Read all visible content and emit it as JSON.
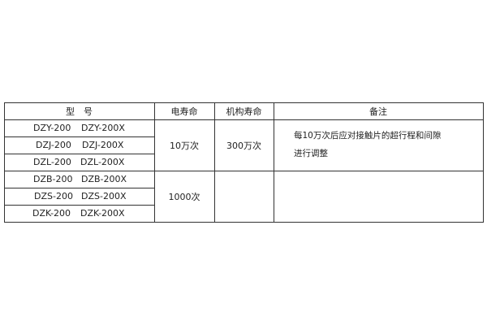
{
  "table": {
    "headers": [
      "型　号",
      "电寿命",
      "机构寿命",
      "备注"
    ],
    "rows": [
      {
        "model_a": "DZY-200",
        "model_b": "DZY-200X"
      },
      {
        "model_a": "DZJ-200",
        "model_b": "DZJ-200X"
      },
      {
        "model_a": "DZL-200",
        "model_b": "DZL-200X"
      },
      {
        "model_a": "DZB-200",
        "model_b": "DZB-200X"
      },
      {
        "model_a": "DZS-200",
        "model_b": "DZS-200X"
      },
      {
        "model_a": "DZK-200",
        "model_b": "DZK-200X"
      }
    ],
    "group1": {
      "electrical_life": "10万次",
      "mechanical_life": "300万次",
      "remark_line1": "每10万次后应对接触片的超行程和间隙",
      "remark_line2": "进行调整"
    },
    "group2": {
      "electrical_life": "1000次",
      "mechanical_life": "",
      "remark": ""
    }
  }
}
